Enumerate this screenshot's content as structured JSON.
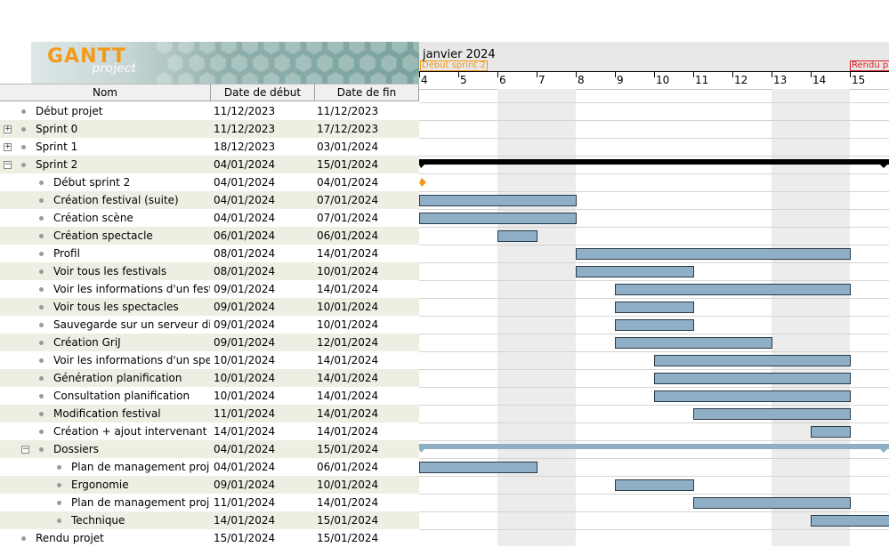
{
  "logo": {
    "title": "GANTT",
    "subtitle": "project"
  },
  "columns": {
    "name": "Nom",
    "start": "Date de début",
    "end": "Date de fin"
  },
  "chart": {
    "month": "janvier 2024",
    "days": [
      "4",
      "5",
      "6",
      "7",
      "8",
      "9",
      "10",
      "11",
      "12",
      "13",
      "14",
      "15"
    ],
    "milestone_labels": [
      {
        "text": "Début sprint 2",
        "color": "#f39a1a"
      },
      {
        "text": "Rendu pr",
        "color": "#e02020"
      }
    ],
    "colors": {
      "bar": "#8eafc6",
      "summary": "#000000",
      "milestone": "#f39a1a",
      "deadline": "#e02020",
      "weekend": "#ececec"
    }
  },
  "tasks": [
    {
      "name": "Début projet",
      "start": "11/12/2023",
      "end": "11/12/2023",
      "level": 0,
      "expander": ""
    },
    {
      "name": "Sprint 0",
      "start": "11/12/2023",
      "end": "17/12/2023",
      "level": 0,
      "expander": "+"
    },
    {
      "name": "Sprint 1",
      "start": "18/12/2023",
      "end": "03/01/2024",
      "level": 0,
      "expander": "+"
    },
    {
      "name": "Sprint 2",
      "start": "04/01/2024",
      "end": "15/01/2024",
      "level": 0,
      "expander": "−"
    },
    {
      "name": "Début sprint 2",
      "start": "04/01/2024",
      "end": "04/01/2024",
      "level": 1,
      "expander": ""
    },
    {
      "name": "Création festival (suite)",
      "start": "04/01/2024",
      "end": "07/01/2024",
      "level": 1,
      "expander": ""
    },
    {
      "name": "Création scène",
      "start": "04/01/2024",
      "end": "07/01/2024",
      "level": 1,
      "expander": ""
    },
    {
      "name": "Création spectacle",
      "start": "06/01/2024",
      "end": "06/01/2024",
      "level": 1,
      "expander": ""
    },
    {
      "name": "Profil",
      "start": "08/01/2024",
      "end": "14/01/2024",
      "level": 1,
      "expander": ""
    },
    {
      "name": "Voir tous les festivals",
      "start": "08/01/2024",
      "end": "10/01/2024",
      "level": 1,
      "expander": ""
    },
    {
      "name": "Voir les informations d'un festival",
      "start": "09/01/2024",
      "end": "14/01/2024",
      "level": 1,
      "expander": ""
    },
    {
      "name": "Voir tous les spectacles",
      "start": "09/01/2024",
      "end": "10/01/2024",
      "level": 1,
      "expander": ""
    },
    {
      "name": "Sauvegarde sur un serveur dista...",
      "start": "09/01/2024",
      "end": "10/01/2024",
      "level": 1,
      "expander": ""
    },
    {
      "name": "Création GriJ",
      "start": "09/01/2024",
      "end": "12/01/2024",
      "level": 1,
      "expander": ""
    },
    {
      "name": "Voir les informations d'un spect...",
      "start": "10/01/2024",
      "end": "14/01/2024",
      "level": 1,
      "expander": ""
    },
    {
      "name": "Génération planification",
      "start": "10/01/2024",
      "end": "14/01/2024",
      "level": 1,
      "expander": ""
    },
    {
      "name": "Consultation planification",
      "start": "10/01/2024",
      "end": "14/01/2024",
      "level": 1,
      "expander": ""
    },
    {
      "name": "Modification festival",
      "start": "11/01/2024",
      "end": "14/01/2024",
      "level": 1,
      "expander": ""
    },
    {
      "name": "Création + ajout intervenant",
      "start": "14/01/2024",
      "end": "14/01/2024",
      "level": 1,
      "expander": ""
    },
    {
      "name": "Dossiers",
      "start": "04/01/2024",
      "end": "15/01/2024",
      "level": 1,
      "expander": "−"
    },
    {
      "name": "Plan de management projet",
      "start": "04/01/2024",
      "end": "06/01/2024",
      "level": 2,
      "expander": ""
    },
    {
      "name": "Ergonomie",
      "start": "09/01/2024",
      "end": "10/01/2024",
      "level": 2,
      "expander": ""
    },
    {
      "name": "Plan de management projet...",
      "start": "11/01/2024",
      "end": "14/01/2024",
      "level": 2,
      "expander": ""
    },
    {
      "name": "Technique",
      "start": "14/01/2024",
      "end": "15/01/2024",
      "level": 2,
      "expander": ""
    },
    {
      "name": "Rendu projet",
      "start": "15/01/2024",
      "end": "15/01/2024",
      "level": 0,
      "expander": ""
    }
  ]
}
